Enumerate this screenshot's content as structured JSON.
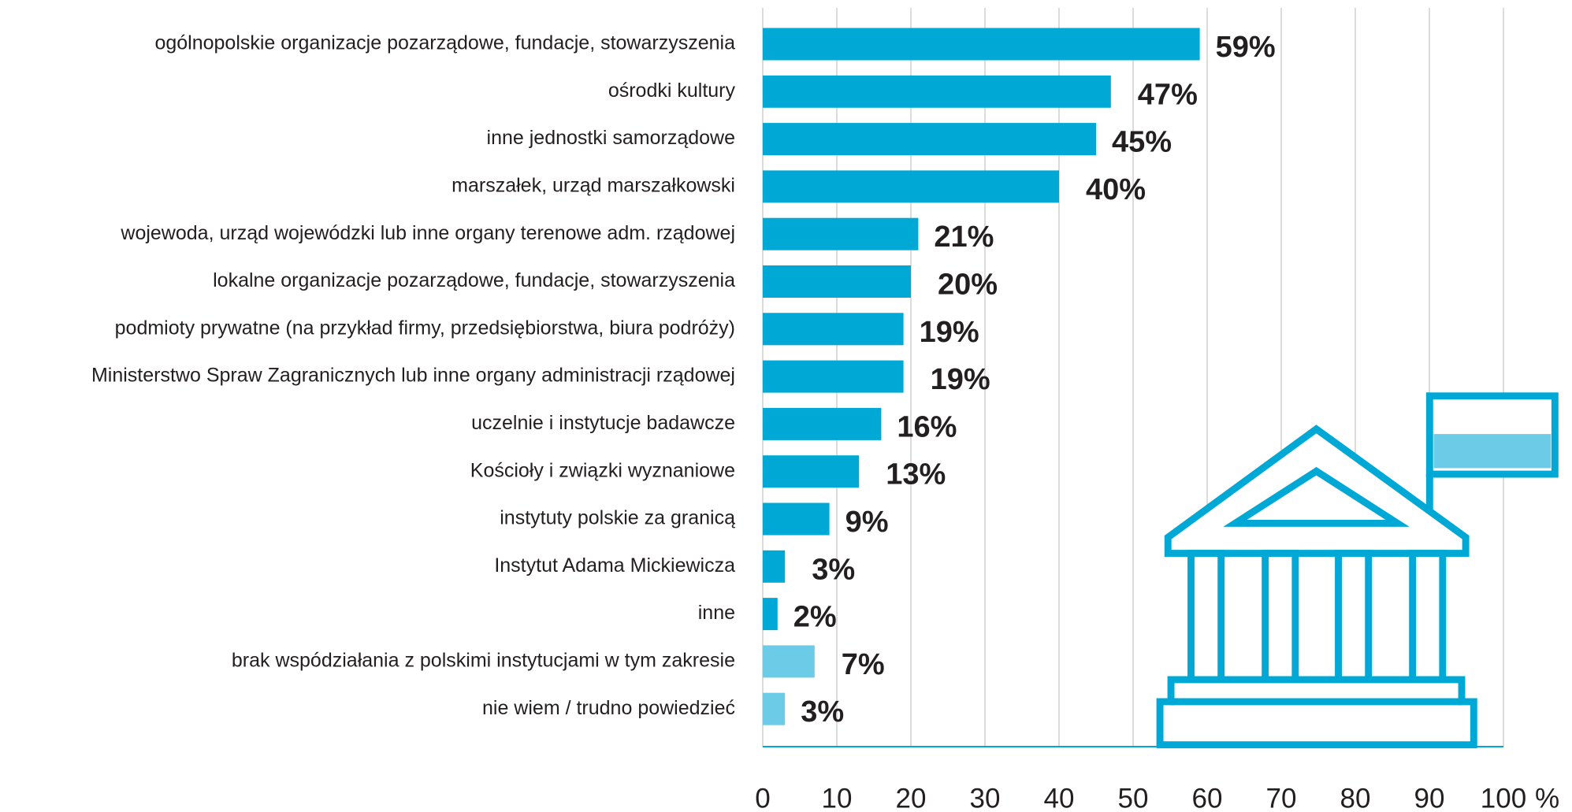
{
  "chart_data": {
    "type": "bar",
    "orientation": "horizontal",
    "categories": [
      "ogólnopolskie organizacje pozarządowe, fundacje, stowarzyszenia",
      "ośrodki kultury",
      "inne jednostki samorządowe",
      "marszałek, urząd marszałkowski",
      "wojewoda, urząd wojewódzki lub inne organy terenowe adm. rządowej",
      "lokalne organizacje pozarządowe, fundacje, stowarzyszenia",
      "podmioty prywatne (na przykład firmy, przedsiębiorstwa, biura podróży)",
      "Ministerstwo Spraw Zagranicznych lub inne organy administracji rządowej",
      "uczelnie i instytucje badawcze",
      "Kościoły i związki wyznaniowe",
      "instytuty polskie za granicą",
      "Instytut Adama Mickiewicza",
      "inne",
      "brak wspódziałania z polskimi instytucjami w tym zakresie",
      "nie wiem / trudno powiedzieć"
    ],
    "values": [
      59,
      47,
      45,
      40,
      21,
      20,
      19,
      19,
      16,
      13,
      9,
      3,
      2,
      7,
      3
    ],
    "value_labels": [
      "59%",
      "47%",
      "45%",
      "40%",
      "21%",
      "20%",
      "19%",
      "19%",
      "16%",
      "13%",
      "9%",
      "3%",
      "2%",
      "7%",
      "3%"
    ],
    "colors": [
      "#00a8d6",
      "#00a8d6",
      "#00a8d6",
      "#00a8d6",
      "#00a8d6",
      "#00a8d6",
      "#00a8d6",
      "#00a8d6",
      "#00a8d6",
      "#00a8d6",
      "#00a8d6",
      "#00a8d6",
      "#00a8d6",
      "#6ccbe6",
      "#6ccbe6"
    ],
    "xlabel": "%",
    "xlim": [
      0,
      100
    ],
    "xticks": [
      0,
      10,
      20,
      30,
      40,
      50,
      60,
      70,
      80,
      90,
      100
    ],
    "grid": true
  }
}
